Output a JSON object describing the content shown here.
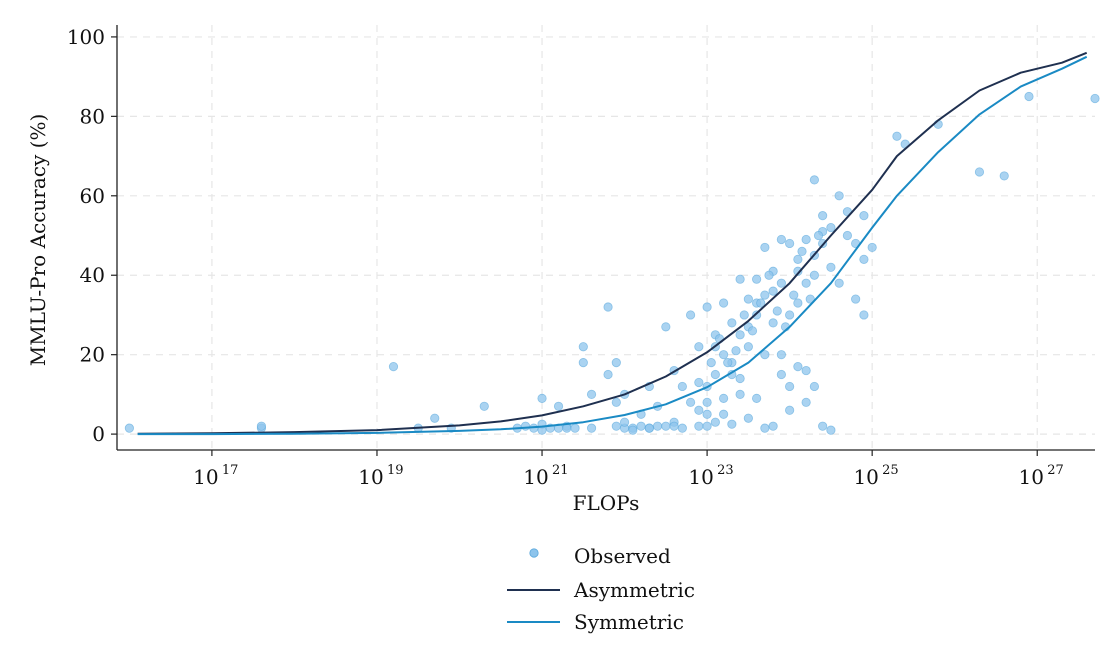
{
  "chart_data": {
    "type": "scatter",
    "title": "",
    "xlabel": "FLOPs",
    "ylabel": "MMLU-Pro Accuracy (%)",
    "xscale": "log",
    "xlim_log10": [
      15.85,
      27.7
    ],
    "ylim": [
      -4,
      103
    ],
    "grid": true,
    "x_ticks": [
      {
        "base": "10",
        "exp": "17",
        "log10": 17
      },
      {
        "base": "10",
        "exp": "19",
        "log10": 19
      },
      {
        "base": "10",
        "exp": "21",
        "log10": 21
      },
      {
        "base": "10",
        "exp": "23",
        "log10": 23
      },
      {
        "base": "10",
        "exp": "25",
        "log10": 25
      },
      {
        "base": "10",
        "exp": "27",
        "log10": 27
      }
    ],
    "y_ticks": [
      0,
      20,
      40,
      60,
      80,
      100
    ],
    "legend": {
      "placement": "bottom-center",
      "items": [
        "Observed",
        "Asymmetric",
        "Symmetric"
      ]
    },
    "colors": {
      "observed": "#8dc4ec",
      "asymmetric": "#1f3050",
      "symmetric": "#1a8ac4",
      "grid": "#e6e6e6",
      "axis": "#222222"
    },
    "series": [
      {
        "name": "Asymmetric",
        "kind": "line",
        "log10_x": [
          16.1,
          17,
          18,
          19,
          20,
          20.5,
          21,
          21.5,
          22,
          22.5,
          23,
          23.5,
          24,
          24.5,
          25,
          25.3,
          25.8,
          26.3,
          26.8,
          27.3,
          27.6
        ],
        "y": [
          0.1,
          0.2,
          0.5,
          1.0,
          2.2,
          3.2,
          4.7,
          7.0,
          10.0,
          14.5,
          20.6,
          28.5,
          38.0,
          50.0,
          61.5,
          70.0,
          79.0,
          86.5,
          91.0,
          93.5,
          96.0
        ]
      },
      {
        "name": "Symmetric",
        "kind": "line",
        "log10_x": [
          16.1,
          17,
          18,
          19,
          20,
          20.5,
          21,
          21.5,
          22,
          22.5,
          23,
          23.5,
          24,
          24.5,
          25,
          25.3,
          25.8,
          26.3,
          26.8,
          27.3,
          27.6
        ],
        "y": [
          0.0,
          0.0,
          0.1,
          0.3,
          0.8,
          1.2,
          1.9,
          3.0,
          4.8,
          7.5,
          11.8,
          18.0,
          27.0,
          38.0,
          52.0,
          60.0,
          71.0,
          80.5,
          87.5,
          92.0,
          95.0
        ]
      }
    ],
    "observed": {
      "name": "Observed",
      "log10_x": [
        16.0,
        17.6,
        17.6,
        19.2,
        19.5,
        19.7,
        19.9,
        20.3,
        20.7,
        20.8,
        20.9,
        21.0,
        21.0,
        21.0,
        21.2,
        21.2,
        21.3,
        21.3,
        21.5,
        21.5,
        21.6,
        21.6,
        21.8,
        21.8,
        21.9,
        21.9,
        21.9,
        22.0,
        22.0,
        22.0,
        22.1,
        22.1,
        22.2,
        22.2,
        22.3,
        22.3,
        22.4,
        22.4,
        22.5,
        22.5,
        22.6,
        22.6,
        22.7,
        22.7,
        22.8,
        22.8,
        22.9,
        22.9,
        22.9,
        23.0,
        23.0,
        23.0,
        23.0,
        23.1,
        23.1,
        23.1,
        23.2,
        23.2,
        23.2,
        23.3,
        23.3,
        23.3,
        23.4,
        23.4,
        23.4,
        23.5,
        23.5,
        23.5,
        23.6,
        23.6,
        23.6,
        23.7,
        23.7,
        23.7,
        23.8,
        23.8,
        23.8,
        23.9,
        23.9,
        23.9,
        24.0,
        24.0,
        24.0,
        24.1,
        24.1,
        24.1,
        24.2,
        24.2,
        24.2,
        24.3,
        24.3,
        24.3,
        24.4,
        24.4,
        24.4,
        24.5,
        24.5,
        24.6,
        24.6,
        24.7,
        24.7,
        24.8,
        24.8,
        24.9,
        24.9,
        24.9,
        25.0,
        25.3,
        25.4,
        25.8,
        26.3,
        26.6,
        26.9,
        27.7,
        21.1,
        21.4,
        22.3,
        22.6,
        23.2,
        23.4,
        23.7,
        24.0,
        24.2,
        24.5,
        23.0,
        23.1,
        23.3,
        23.5,
        23.6,
        23.8,
        23.9,
        24.1,
        24.3,
        24.4,
        22.9,
        23.05,
        23.15,
        23.25,
        23.35,
        23.45,
        23.55,
        23.65,
        23.75,
        23.85,
        23.95,
        24.05,
        24.15,
        24.25,
        24.35
      ],
      "y": [
        1.5,
        1.5,
        2.0,
        17.0,
        1.5,
        4.0,
        1.5,
        7.0,
        1.5,
        2.0,
        1.5,
        9.0,
        2.5,
        1.0,
        1.5,
        7.0,
        2.0,
        1.5,
        22.0,
        18.0,
        1.5,
        10.0,
        32.0,
        15.0,
        2.0,
        18.0,
        8.0,
        1.5,
        10.0,
        3.0,
        1.5,
        1.0,
        2.0,
        5.0,
        12.0,
        1.5,
        2.0,
        7.0,
        27.0,
        2.0,
        16.0,
        3.0,
        12.0,
        1.5,
        8.0,
        30.0,
        22.0,
        2.0,
        6.0,
        32.0,
        12.0,
        8.0,
        2.0,
        25.0,
        15.0,
        3.0,
        33.0,
        20.0,
        5.0,
        28.0,
        18.0,
        2.5,
        39.0,
        25.0,
        10.0,
        34.0,
        22.0,
        4.0,
        39.0,
        30.0,
        9.0,
        47.0,
        35.0,
        20.0,
        41.0,
        28.0,
        2.0,
        49.0,
        38.0,
        15.0,
        48.0,
        30.0,
        12.0,
        41.0,
        33.0,
        17.0,
        49.0,
        38.0,
        8.0,
        64.0,
        45.0,
        12.0,
        55.0,
        48.0,
        2.0,
        52.0,
        42.0,
        60.0,
        38.0,
        56.0,
        50.0,
        48.0,
        34.0,
        55.0,
        44.0,
        30.0,
        47.0,
        75.0,
        73.0,
        78.0,
        66.0,
        65.0,
        85.0,
        84.5,
        1.5,
        1.5,
        1.5,
        2.0,
        9.0,
        14.0,
        1.5,
        6.0,
        16.0,
        1.0,
        5.0,
        22.0,
        15.0,
        27.0,
        33.0,
        36.0,
        20.0,
        44.0,
        40.0,
        51.0,
        13.0,
        18.0,
        24.0,
        18.0,
        21.0,
        30.0,
        26.0,
        33.0,
        40.0,
        31.0,
        27.0,
        35.0,
        46.0,
        34.0,
        50.0
      ]
    }
  }
}
